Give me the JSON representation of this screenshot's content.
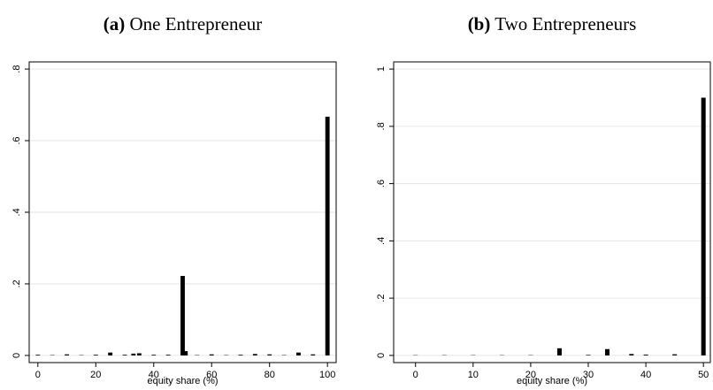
{
  "chart_data": [
    {
      "type": "bar",
      "label": "(a)",
      "title": "One Entrepreneur",
      "xlabel": "equity share (%)",
      "color": "#000000",
      "grid": true,
      "x": [
        0,
        5,
        10,
        15,
        20,
        25,
        30,
        33,
        35,
        40,
        45,
        50,
        51,
        55,
        60,
        65,
        70,
        75,
        80,
        85,
        90,
        95,
        100
      ],
      "values": [
        0.002,
        0.001,
        0.003,
        0.001,
        0.002,
        0.008,
        0.002,
        0.005,
        0.006,
        0.002,
        0.002,
        0.222,
        0.012,
        0.001,
        0.003,
        0.001,
        0.002,
        0.004,
        0.003,
        0.001,
        0.008,
        0.003,
        0.667
      ],
      "xlim": [
        -3,
        103
      ],
      "xticks": [
        0,
        20,
        40,
        60,
        80,
        100
      ],
      "ylim": [
        -0.02,
        0.82
      ],
      "yticks": [
        0,
        {
          "value": 0.2,
          "label": ".2"
        },
        {
          "value": 0.4,
          "label": ".4"
        },
        {
          "value": 0.6,
          "label": ".6"
        },
        {
          "value": 0.8,
          "label": ".8"
        }
      ]
    },
    {
      "type": "bar",
      "label": "(b)",
      "title": "Two Entrepreneurs",
      "xlabel": "equity share (%)",
      "color": "#000000",
      "grid": true,
      "x": [
        0,
        5,
        10,
        15,
        20,
        25,
        30,
        33.3,
        37.5,
        40,
        45,
        50
      ],
      "values": [
        0.001,
        0.001,
        0.001,
        0.001,
        0.001,
        0.025,
        0.002,
        0.022,
        0.005,
        0.003,
        0.004,
        0.9
      ],
      "xlim": [
        -3.8,
        51.2
      ],
      "xticks": [
        0,
        10,
        20,
        30,
        40,
        50
      ],
      "ylim": [
        -0.025,
        1.025
      ],
      "yticks": [
        0,
        {
          "value": 0.2,
          "label": ".2"
        },
        {
          "value": 0.4,
          "label": ".4"
        },
        {
          "value": 0.6,
          "label": ".6"
        },
        {
          "value": 0.8,
          "label": ".8"
        },
        {
          "value": 1,
          "label": "1"
        }
      ]
    }
  ]
}
